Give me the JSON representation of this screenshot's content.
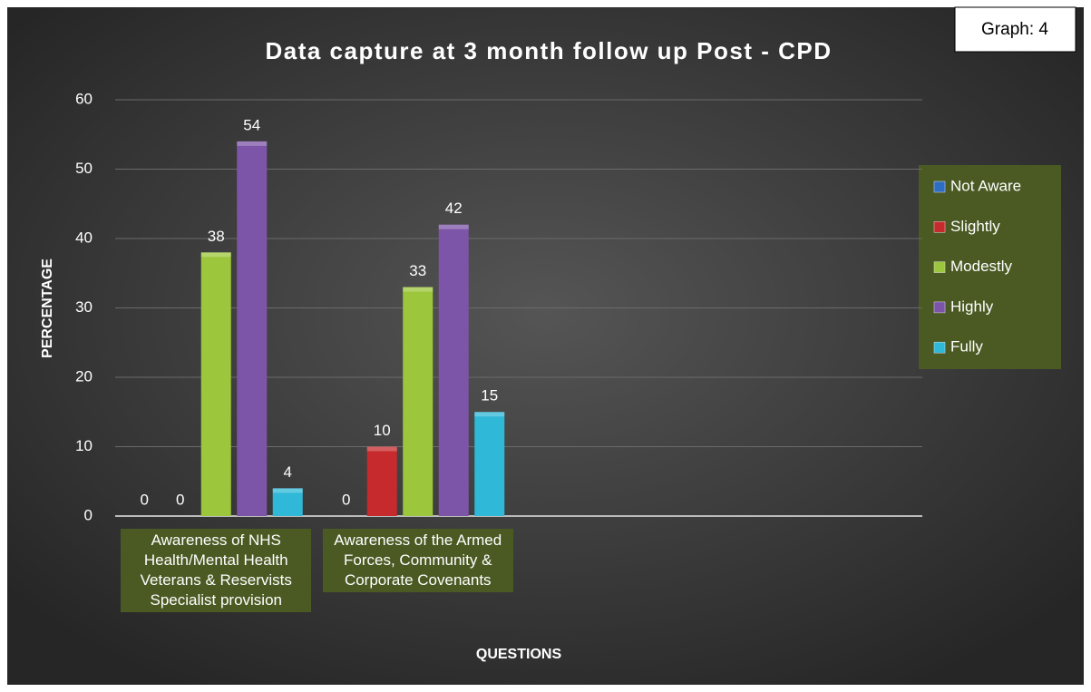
{
  "chart_data": {
    "type": "bar",
    "title": "Data capture at 3 month follow up Post - CPD",
    "badge": "Graph: 4",
    "x_label": "QUESTIONS",
    "y_label": "PERCENTAGE",
    "categories": [
      "Awareness of NHS Health/Mental Health Veterans & Reservists Specialist provision",
      "Awareness of the Armed Forces, Community & Corporate Covenants",
      null,
      null
    ],
    "series": [
      {
        "name": "Not Aware",
        "color": "#2e6dc4",
        "values": [
          0,
          0,
          null,
          null
        ]
      },
      {
        "name": "Slightly",
        "color": "#c62a2d",
        "values": [
          0,
          10,
          null,
          null
        ]
      },
      {
        "name": "Modestly",
        "color": "#9cc63b",
        "values": [
          38,
          33,
          null,
          null
        ]
      },
      {
        "name": "Highly",
        "color": "#7d55a8",
        "values": [
          54,
          42,
          null,
          null
        ]
      },
      {
        "name": "Fully",
        "color": "#2fb8d8",
        "values": [
          4,
          15,
          null,
          null
        ]
      }
    ],
    "ylim": [
      0,
      60
    ],
    "yticks": [
      0,
      10,
      20,
      30,
      40,
      50,
      60
    ],
    "grid": true,
    "legend": "right"
  }
}
